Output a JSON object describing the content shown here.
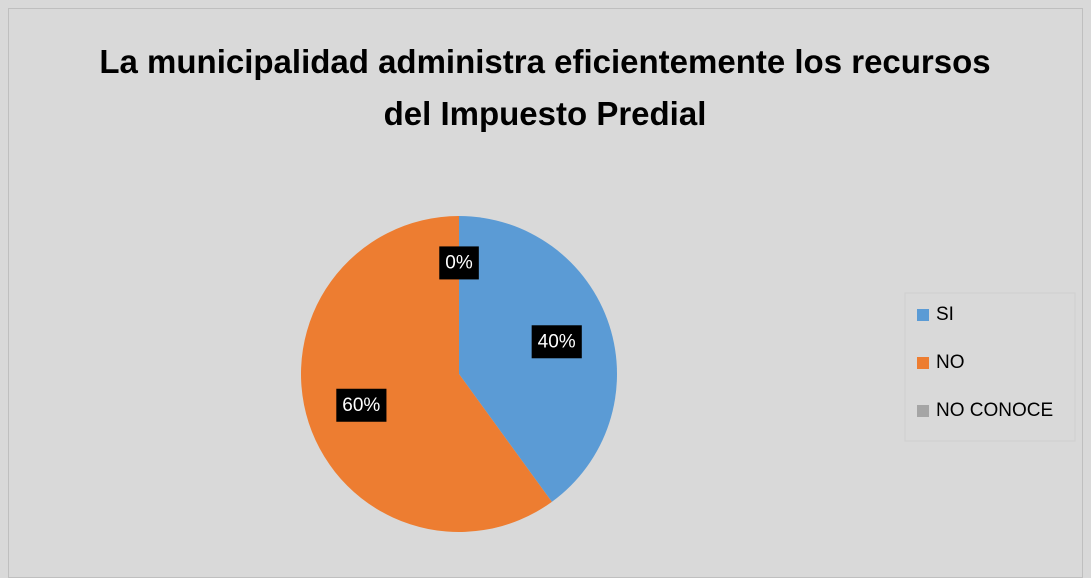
{
  "chart_data": {
    "type": "pie",
    "title": "La municipalidad administra eficientemente los recursos del Impuesto Predial",
    "categories": [
      "SI",
      "NO",
      "NO CONOCE"
    ],
    "values": [
      40,
      60,
      0
    ],
    "value_labels": [
      "40%",
      "60%",
      "0%"
    ],
    "colors": [
      "#5b9bd5",
      "#ed7d31",
      "#a5a5a5"
    ],
    "legend": "right"
  }
}
